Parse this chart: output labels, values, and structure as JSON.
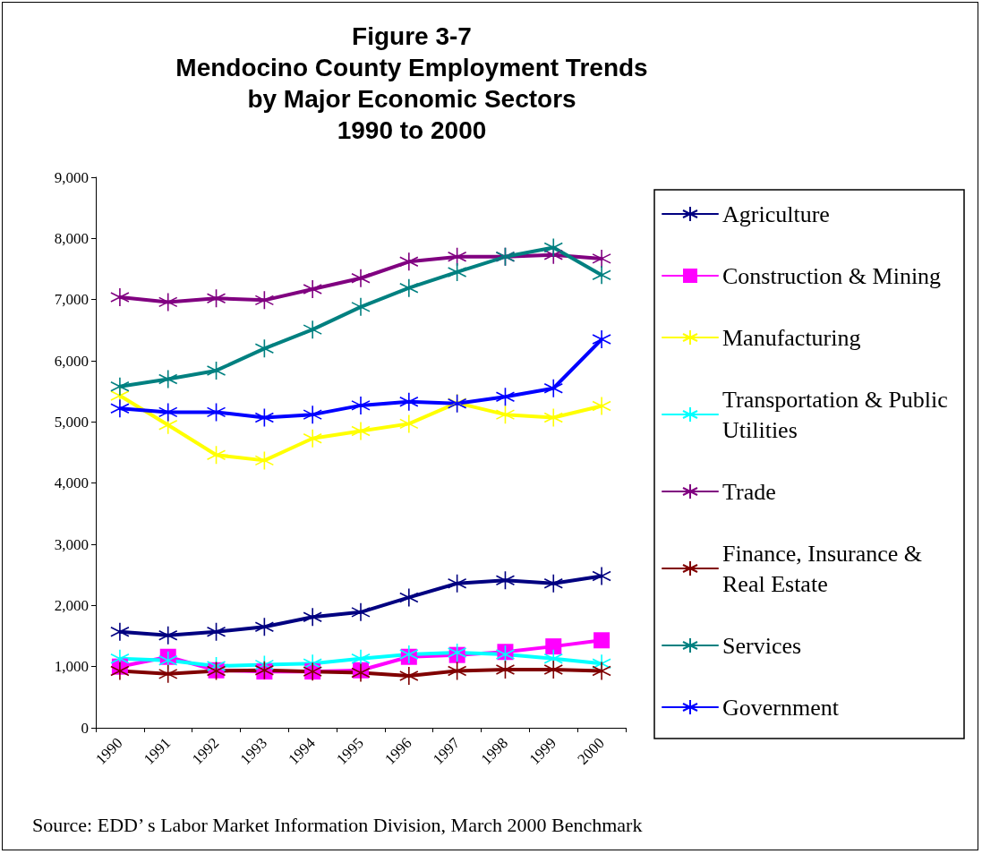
{
  "chart_data": {
    "type": "line",
    "title": "Figure 3-7\nMendocino County Employment Trends\nby Major Economic Sectors\n1990 to 2000",
    "categories": [
      "1990",
      "1991",
      "1992",
      "1993",
      "1994",
      "1995",
      "1996",
      "1997",
      "1998",
      "1999",
      "2000"
    ],
    "ylim": [
      0,
      9000
    ],
    "yticks": [
      {
        "value": 0,
        "label": "0"
      },
      {
        "value": 1000,
        "label": "1,000"
      },
      {
        "value": 2000,
        "label": "2,000"
      },
      {
        "value": 3000,
        "label": "3,000"
      },
      {
        "value": 4000,
        "label": "4,000"
      },
      {
        "value": 5000,
        "label": "5,000"
      },
      {
        "value": 6000,
        "label": "6,000"
      },
      {
        "value": 7000,
        "label": "7,000"
      },
      {
        "value": 8000,
        "label": "8,000"
      },
      {
        "value": 9000,
        "label": "9,000"
      }
    ],
    "series": [
      {
        "name": "Agriculture",
        "color": "#000080",
        "marker": "cross",
        "values": [
          1570,
          1510,
          1570,
          1650,
          1810,
          1890,
          2130,
          2360,
          2410,
          2360,
          2480
        ]
      },
      {
        "name": "Construction & Mining",
        "color": "#ff00ff",
        "marker": "square",
        "values": [
          1000,
          1160,
          940,
          920,
          920,
          940,
          1160,
          1190,
          1240,
          1330,
          1430
        ]
      },
      {
        "name": "Manufacturing",
        "color": "#ffff00",
        "marker": "cross",
        "values": [
          5430,
          4950,
          4460,
          4370,
          4730,
          4850,
          4970,
          5310,
          5120,
          5070,
          5260
        ]
      },
      {
        "name": "Transportation & Public Utilities",
        "color": "#00ffff",
        "marker": "cross",
        "values": [
          1130,
          1100,
          1010,
          1030,
          1050,
          1130,
          1200,
          1230,
          1200,
          1130,
          1050
        ]
      },
      {
        "name": "Trade",
        "color": "#800080",
        "marker": "cross",
        "values": [
          7040,
          6960,
          7020,
          6990,
          7170,
          7350,
          7620,
          7700,
          7700,
          7730,
          7670
        ]
      },
      {
        "name": "Finance, Insurance & Real Estate",
        "color": "#800000",
        "marker": "cross",
        "values": [
          930,
          880,
          930,
          940,
          920,
          900,
          850,
          930,
          950,
          950,
          930
        ]
      },
      {
        "name": "Services",
        "color": "#008080",
        "marker": "cross",
        "values": [
          5580,
          5700,
          5840,
          6200,
          6510,
          6880,
          7190,
          7450,
          7700,
          7850,
          7400
        ]
      },
      {
        "name": "Government",
        "color": "#0000ff",
        "marker": "cross",
        "values": [
          5220,
          5160,
          5160,
          5070,
          5120,
          5270,
          5330,
          5300,
          5410,
          5550,
          6350
        ]
      }
    ],
    "legend": "right",
    "grid": false,
    "line_style": "solid",
    "annotations": [
      "Source: EDD’ s Labor Market Information Division, March 2000 Benchmark"
    ]
  }
}
